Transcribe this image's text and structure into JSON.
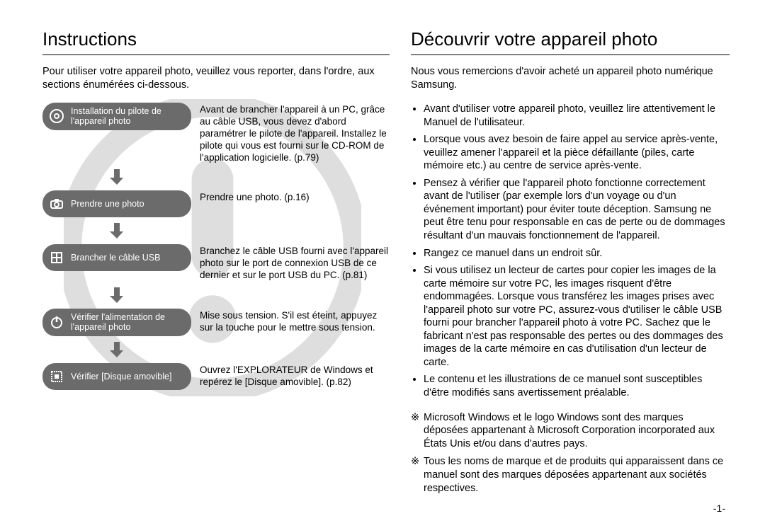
{
  "colors": {
    "pill_bg": "#6b6b6b",
    "pill_fg": "#ffffff",
    "rule": "#000000",
    "text": "#000000",
    "watermark": "#d7d7d7",
    "arrow": "#6b6b6b"
  },
  "left": {
    "heading": "Instructions",
    "intro": "Pour utiliser votre appareil photo, veuillez vous reporter, dans l'ordre, aux sections énumérées ci-dessous.",
    "steps": [
      {
        "icon": "disc-icon",
        "label": "Installation du pilote de l'appareil photo",
        "desc": "Avant de brancher l'appareil à un PC, grâce au câble USB, vous devez d'abord paramétrer le pilote de l'appareil. Installez le pilote qui vous est fourni sur le CD-ROM de l'application logicielle. (p.79)"
      },
      {
        "icon": "camera-icon",
        "label": "Prendre une photo",
        "desc": "Prendre une photo. (p.16)"
      },
      {
        "icon": "usb-icon",
        "label": "Brancher le câble USB",
        "desc": "Branchez le câble USB fourni avec l'appareil photo sur le port de connexion USB de ce dernier et sur le port USB du PC. (p.81)"
      },
      {
        "icon": "power-icon",
        "label": "Vérifier l'alimentation de l'appareil photo",
        "desc": "Mise sous tension. S'il est éteint, appuyez sur la touche pour le mettre sous tension."
      },
      {
        "icon": "disk-icon",
        "label": "Vérifier [Disque amovible]",
        "desc": "Ouvrez l'EXPLORATEUR de Windows et repérez le [Disque amovible]. (p.82)"
      }
    ]
  },
  "right": {
    "heading": "Découvrir votre appareil photo",
    "intro": "Nous vous remercions d'avoir acheté un appareil photo numérique Samsung.",
    "bullets": [
      "Avant d'utiliser votre appareil photo, veuillez lire attentivement le Manuel de l'utilisateur.",
      "Lorsque vous avez besoin de faire appel au service après-vente, veuillez amener l'appareil et la pièce défaillante (piles, carte mémoire etc.) au centre de service après-vente.",
      "Pensez à vérifier que l'appareil photo fonctionne correctement avant de l'utiliser (par exemple lors d'un voyage ou d'un événement important) pour éviter toute déception. Samsung ne peut être tenu pour responsable en cas de perte ou de dommages résultant d'un mauvais fonctionnement de l'appareil.",
      "Rangez ce manuel dans un endroit sûr.",
      "Si vous utilisez un lecteur de cartes pour copier les images de la carte mémoire sur votre PC, les images risquent d'être endommagées. Lorsque vous transférez les images prises avec l'appareil photo sur votre PC, assurez-vous d'utiliser le câble USB fourni pour brancher l'appareil photo à votre PC. Sachez que le fabricant n'est pas responsable des pertes ou des dommages des images de la carte mémoire en cas d'utilisation d'un lecteur de carte.",
      "Le contenu et les illustrations de ce manuel sont susceptibles d'être modifiés sans avertissement préalable."
    ],
    "note_mark": "※",
    "notes": [
      "Microsoft Windows et le logo Windows sont des marques déposées appartenant à Microsoft Corporation incorporated aux États Unis et/ou dans d'autres pays.",
      "Tous les noms de marque et de produits qui apparaissent dans ce manuel sont des marques déposées appartenant aux sociétés respectives."
    ]
  },
  "page_number": "-1-"
}
